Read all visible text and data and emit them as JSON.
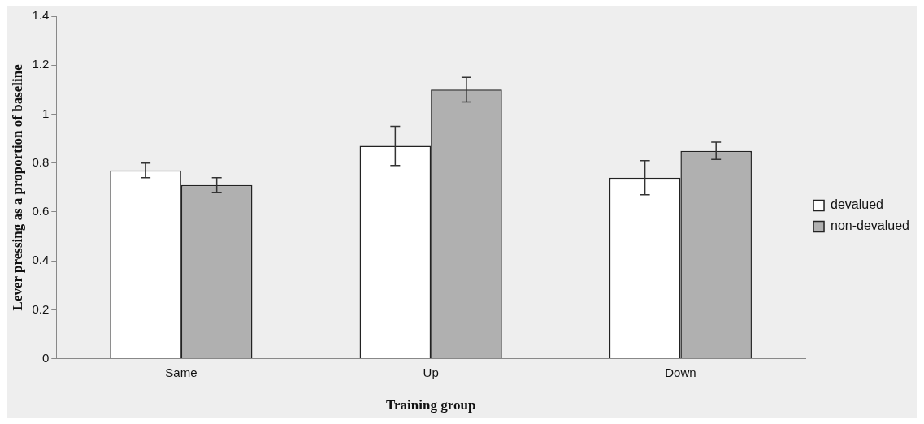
{
  "chart_data": {
    "type": "bar",
    "xlabel": "Training group",
    "ylabel": "Lever pressing as a proportion of baseline",
    "categories": [
      "Same",
      "Up",
      "Down"
    ],
    "series": [
      {
        "name": "devalued",
        "color": "#ffffff",
        "values": [
          0.77,
          0.87,
          0.74
        ],
        "errors": [
          0.03,
          0.08,
          0.07
        ]
      },
      {
        "name": "non-devalued",
        "color": "#b0b0b0",
        "values": [
          0.71,
          1.1,
          0.85
        ],
        "errors": [
          0.03,
          0.05,
          0.035
        ]
      }
    ],
    "ylim": [
      0,
      1.4
    ],
    "yticks": [
      0,
      0.2,
      0.4,
      0.6,
      0.8,
      1,
      1.2,
      1.4
    ],
    "grid": false,
    "legend": "right"
  }
}
